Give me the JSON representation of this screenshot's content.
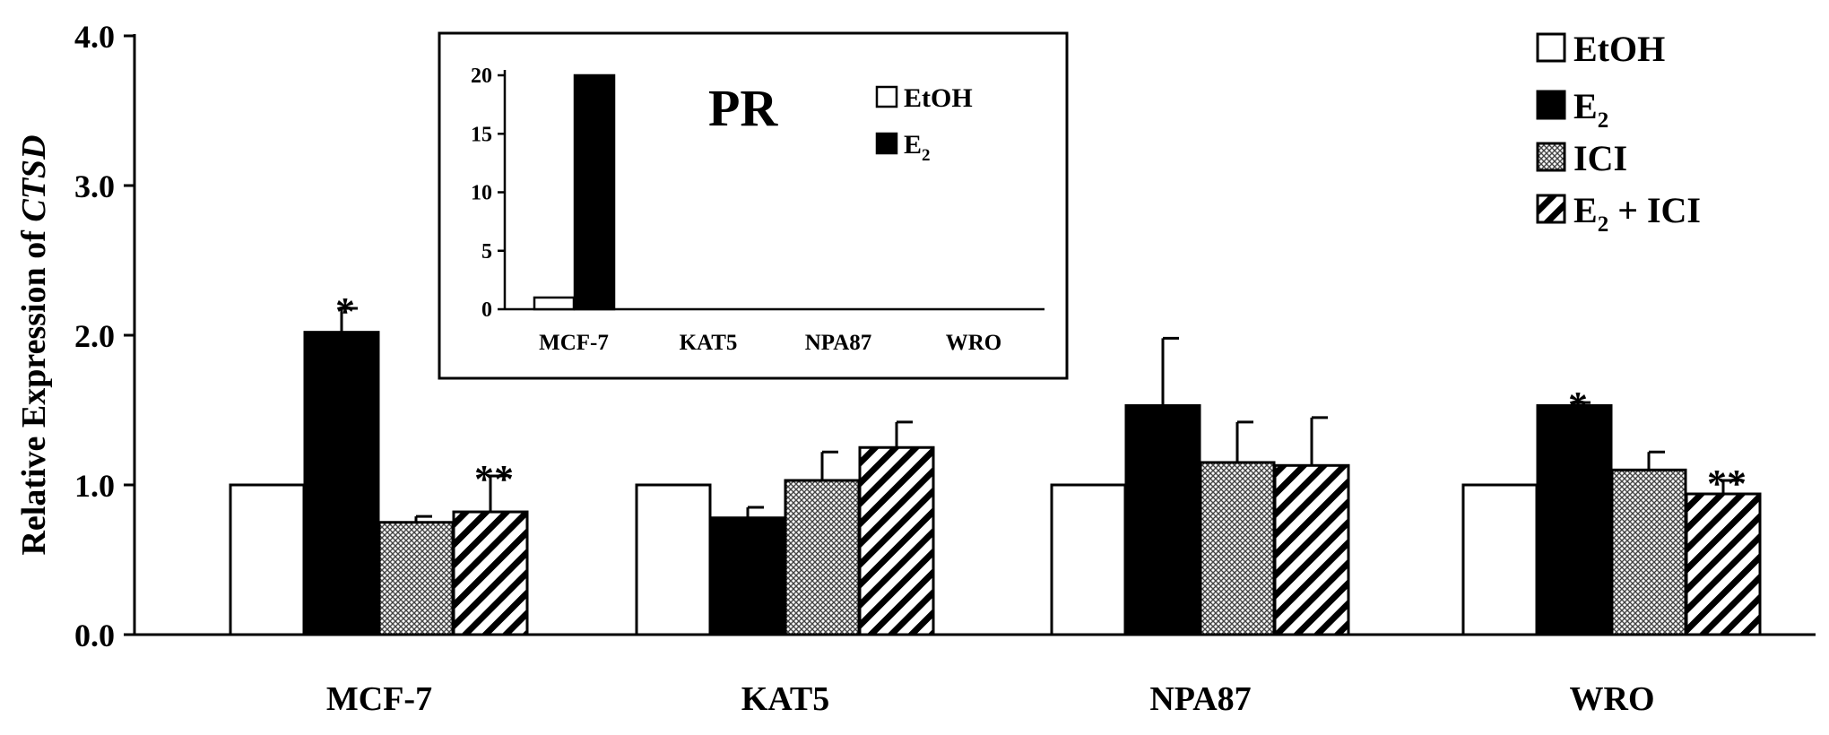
{
  "chart_data": [
    {
      "type": "bar",
      "title": "",
      "ylabel_prefix": "Relative Expression of ",
      "ylabel_gene": "CTSD",
      "xlabel": "",
      "ylim": [
        0,
        4.0
      ],
      "yticks": [
        "0.0",
        "1.0",
        "2.0",
        "3.0",
        "4.0"
      ],
      "categories": [
        "MCF-7",
        "KAT5",
        "NPA87",
        "WRO"
      ],
      "series": [
        {
          "name": "EtOH",
          "fill": "white",
          "values": [
            1.0,
            1.0,
            1.0,
            1.0
          ],
          "errors": [
            0,
            0,
            0,
            0
          ],
          "marks": [
            "",
            "",
            "",
            ""
          ]
        },
        {
          "name": "E2",
          "fill": "black",
          "values": [
            2.02,
            0.78,
            1.53,
            1.53
          ],
          "errors": [
            0.16,
            0.07,
            0.45,
            0.02
          ],
          "marks": [
            "*",
            "",
            "",
            "*"
          ]
        },
        {
          "name": "ICI",
          "fill": "crosshatch",
          "values": [
            0.75,
            1.03,
            1.15,
            1.1
          ],
          "errors": [
            0.04,
            0.19,
            0.27,
            0.12
          ],
          "marks": [
            "",
            "",
            "",
            ""
          ]
        },
        {
          "name": "E2 + ICI",
          "fill": "diagonal",
          "values": [
            0.82,
            1.25,
            1.13,
            0.94
          ],
          "errors": [
            0.24,
            0.17,
            0.32,
            0.09
          ],
          "marks": [
            "**",
            "",
            "",
            "**"
          ]
        }
      ],
      "legend_position": "top-right",
      "grid": false
    },
    {
      "type": "bar",
      "title": "PR",
      "ylim": [
        0,
        20
      ],
      "yticks": [
        "0",
        "5",
        "10",
        "15",
        "20"
      ],
      "categories": [
        "MCF-7",
        "KAT5",
        "NPA87",
        "WRO"
      ],
      "series": [
        {
          "name": "EtOH",
          "fill": "white",
          "values": [
            1.0,
            0,
            0,
            0
          ]
        },
        {
          "name": "E2",
          "fill": "black",
          "values": [
            20.0,
            0,
            0,
            0
          ]
        }
      ],
      "legend_position": "top-right",
      "grid": false
    }
  ]
}
